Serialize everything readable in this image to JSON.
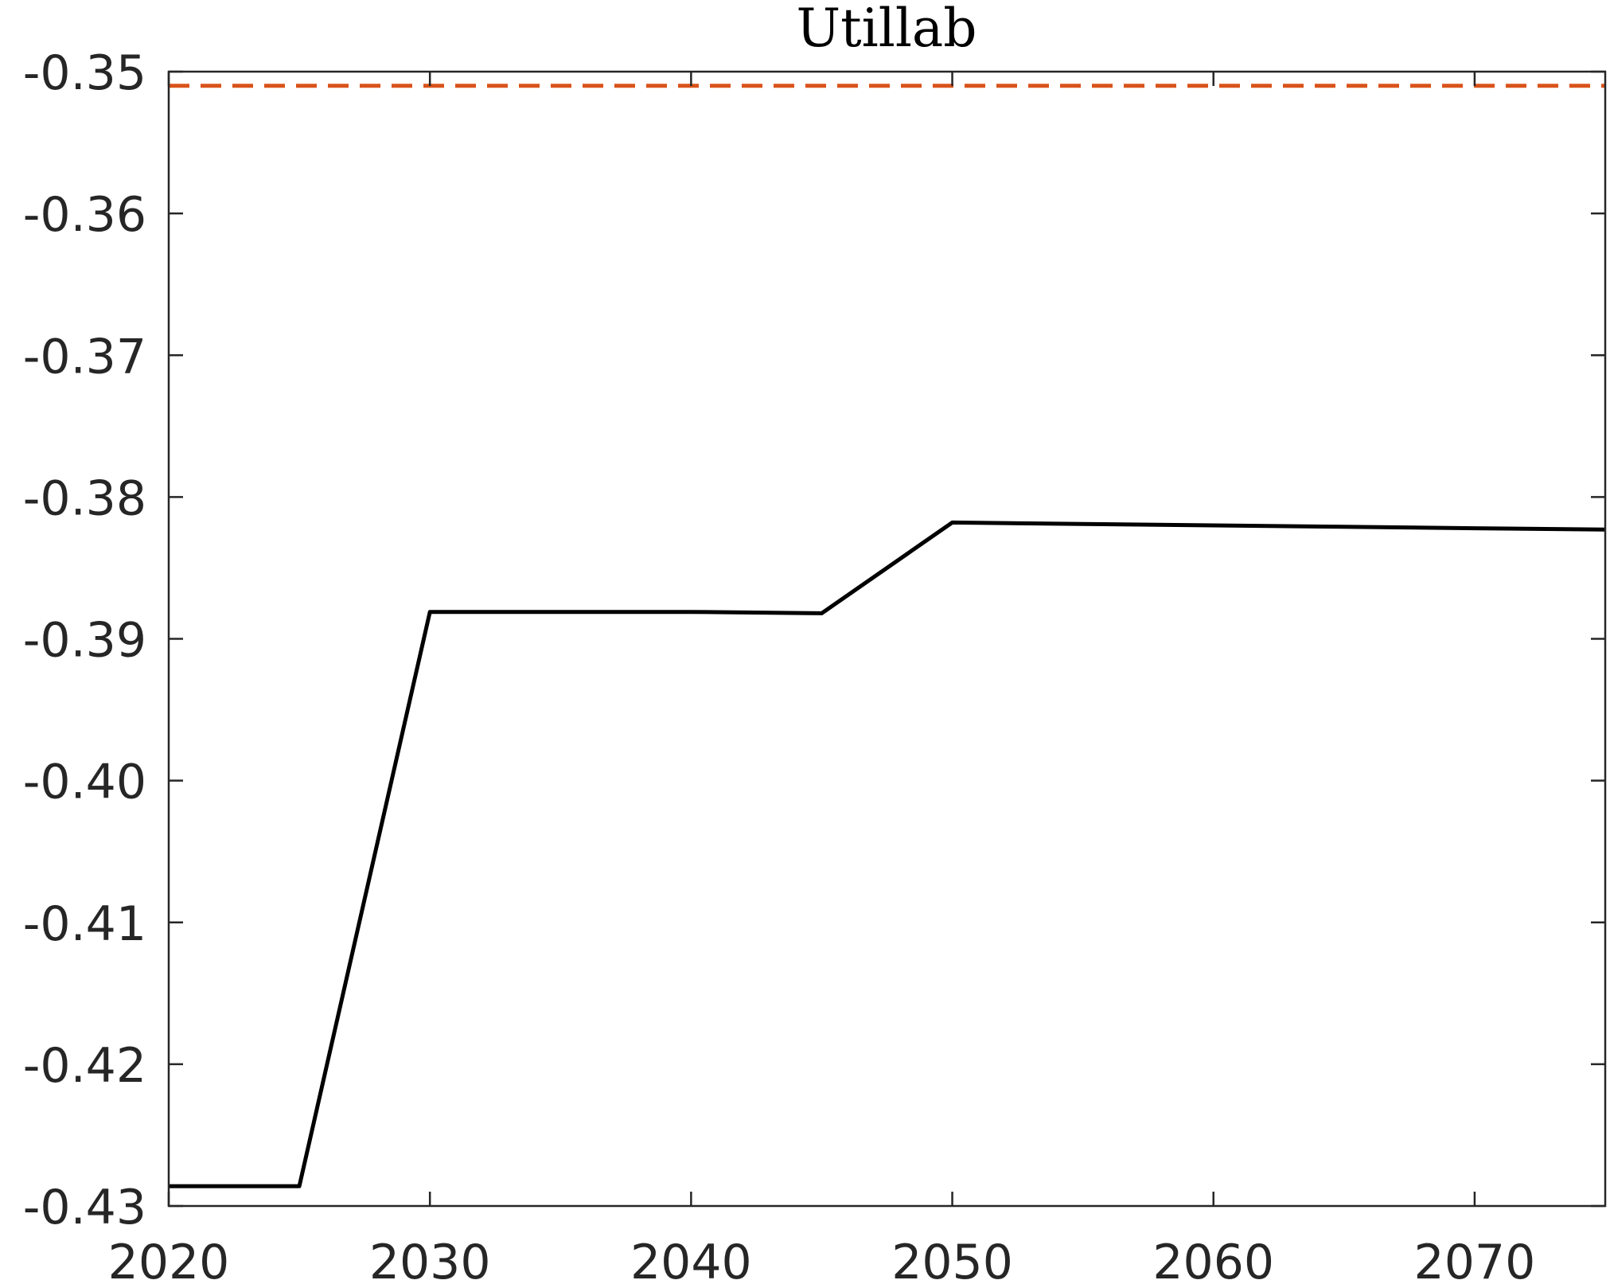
{
  "chart_data": {
    "type": "line",
    "title": "Utillab",
    "xlabel": "",
    "ylabel": "",
    "xlim": [
      2020,
      2075
    ],
    "ylim": [
      -0.43,
      -0.35
    ],
    "xticks": [
      2020,
      2030,
      2040,
      2050,
      2060,
      2070
    ],
    "xtick_labels": [
      "2020",
      "2030",
      "2040",
      "2050",
      "2060",
      "2070"
    ],
    "yticks": [
      -0.43,
      -0.42,
      -0.41,
      -0.4,
      -0.39,
      -0.38,
      -0.37,
      -0.36,
      -0.35
    ],
    "ytick_labels": [
      "-0.43",
      "-0.42",
      "-0.41",
      "-0.40",
      "-0.39",
      "-0.38",
      "-0.37",
      "-0.36",
      "-0.35"
    ],
    "grid": false,
    "series": [
      {
        "style": "solid",
        "color": "#000000",
        "x": [
          2020,
          2025,
          2030,
          2035,
          2040,
          2045,
          2050,
          2055,
          2060,
          2065,
          2070,
          2075
        ],
        "y": [
          -0.4286,
          -0.4286,
          -0.3881,
          -0.3881,
          -0.3881,
          -0.3882,
          -0.3818,
          -0.3819,
          -0.382,
          -0.3821,
          -0.3822,
          -0.3823
        ]
      },
      {
        "style": "dashed",
        "color": "#D95319",
        "x": [
          2020,
          2075
        ],
        "y": [
          -0.351,
          -0.351
        ]
      }
    ]
  }
}
